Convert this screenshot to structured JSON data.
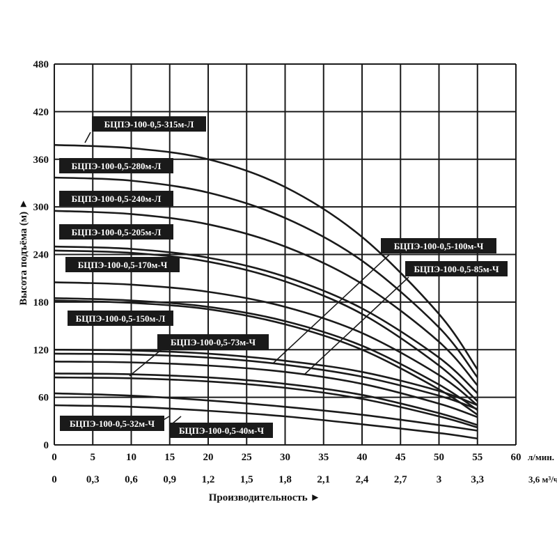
{
  "chart_data": {
    "type": "line",
    "title": "",
    "ylabel": "Высота подъёма (м) ►",
    "xlabel": "Производительность ►",
    "x_unit_primary": "л/мин.",
    "x_unit_secondary": "3,6 м³/ч.",
    "xlim": [
      0,
      60
    ],
    "ylim": [
      0,
      480
    ],
    "y_ticks": [
      "0",
      "60",
      "120",
      "180",
      "240",
      "300",
      "360",
      "420",
      "480"
    ],
    "x_ticks_primary": [
      "0",
      "5",
      "10",
      "15",
      "20",
      "25",
      "30",
      "35",
      "40",
      "45",
      "50",
      "55",
      "60"
    ],
    "x_ticks_secondary": [
      "0",
      "0,3",
      "0,6",
      "0,9",
      "1,2",
      "1,5",
      "1,8",
      "2,1",
      "2,4",
      "2,7",
      "3",
      "3,3",
      "3,6"
    ],
    "grid": true,
    "series": [
      {
        "name": "БЦПЭ-100-0,5-315м-Л",
        "x": [
          0,
          10,
          20,
          30,
          40,
          50,
          55
        ],
        "y": [
          378,
          374,
          360,
          325,
          262,
          165,
          95
        ]
      },
      {
        "name": "БЦПЭ-100-0,5-280м-Л",
        "x": [
          0,
          10,
          20,
          30,
          40,
          50,
          55
        ],
        "y": [
          337,
          333,
          318,
          286,
          232,
          148,
          85
        ]
      },
      {
        "name": "БЦПЭ-100-0,5-240м-Л",
        "x": [
          0,
          10,
          20,
          30,
          40,
          50,
          55
        ],
        "y": [
          295,
          291,
          278,
          250,
          203,
          130,
          75
        ]
      },
      {
        "name": "БЦПЭ-100-0,5-205м-Л",
        "x": [
          0,
          10,
          20,
          30,
          40,
          50,
          55
        ],
        "y": [
          250,
          247,
          236,
          212,
          172,
          110,
          65
        ]
      },
      {
        "name": "БЦПЭ-100-0,5-170м-Ч",
        "x": [
          0,
          10,
          20,
          30,
          40,
          50,
          55
        ],
        "y": [
          245,
          242,
          231,
          206,
          165,
          100,
          55
        ]
      },
      {
        "name": "БЦПЭ-100-0,5-150м-Л",
        "x": [
          0,
          10,
          20,
          30,
          40,
          50,
          55
        ],
        "y": [
          205,
          202,
          193,
          174,
          141,
          88,
          50
        ]
      },
      {
        "name": "БЦПЭ-100-0,5-150м-Л",
        "x": [
          0,
          10,
          20,
          30,
          40,
          50,
          55
        ],
        "y": [
          185,
          182,
          174,
          156,
          125,
          76,
          44
        ]
      },
      {
        "name": "",
        "x": [
          0,
          10,
          20,
          30,
          40,
          50,
          55
        ],
        "y": [
          182,
          179,
          171,
          152,
          120,
          70,
          38
        ]
      },
      {
        "name": "БЦПЭ-100-0,5-73м-Ч",
        "x": [
          0,
          10,
          20,
          30,
          40,
          50,
          55
        ],
        "y": [
          120,
          119,
          115,
          106,
          92,
          68,
          50
        ]
      },
      {
        "name": "БЦПЭ-100-0,5-100м-Ч",
        "x": [
          0,
          10,
          20,
          30,
          40,
          50,
          55
        ],
        "y": [
          115,
          114,
          110,
          101,
          86,
          62,
          45
        ]
      },
      {
        "name": "БЦПЭ-100-0,5-85м-Ч",
        "x": [
          0,
          10,
          20,
          30,
          40,
          50,
          55
        ],
        "y": [
          105,
          104,
          100,
          92,
          77,
          52,
          35
        ]
      },
      {
        "name": "",
        "x": [
          0,
          10,
          20,
          30,
          40,
          50,
          55
        ],
        "y": [
          90,
          89,
          85,
          77,
          63,
          40,
          25
        ]
      },
      {
        "name": "",
        "x": [
          0,
          10,
          20,
          30,
          40,
          50,
          55
        ],
        "y": [
          85,
          84,
          80,
          72,
          58,
          36,
          22
        ]
      },
      {
        "name": "БЦПЭ-100-0,5-40м-Ч",
        "x": [
          0,
          10,
          20,
          30,
          40,
          50,
          55
        ],
        "y": [
          65,
          62,
          56,
          48,
          38,
          25,
          18
        ]
      },
      {
        "name": "БЦПЭ-100-0,5-32м-Ч",
        "x": [
          0,
          10,
          20,
          30,
          40,
          50,
          55
        ],
        "y": [
          50,
          48,
          43,
          36,
          26,
          15,
          8
        ]
      }
    ]
  },
  "labels": [
    {
      "text": "БЦПЭ-100-0,5-315м-Л"
    },
    {
      "text": "БЦПЭ-100-0,5-280м-Л"
    },
    {
      "text": "БЦПЭ-100-0,5-240м-Л"
    },
    {
      "text": "БЦПЭ-100-0,5-205м-Л"
    },
    {
      "text": "БЦПЭ-100-0,5-170м-Ч"
    },
    {
      "text": "БЦПЭ-100-0,5-150м-Л"
    },
    {
      "text": "БЦПЭ-100-0,5-73м-Ч"
    },
    {
      "text": "БЦПЭ-100-0,5-100м-Ч"
    },
    {
      "text": "БЦПЭ-100-0,5-85м-Ч"
    },
    {
      "text": "БЦПЭ-100-0,5-32м-Ч"
    },
    {
      "text": "БЦПЭ-100-0,5-40м-Ч"
    }
  ],
  "colors": {
    "line": "#1a1a1a",
    "label_bg": "#1a1a1a",
    "label_text": "#ffffff",
    "background": "#ffffff"
  }
}
